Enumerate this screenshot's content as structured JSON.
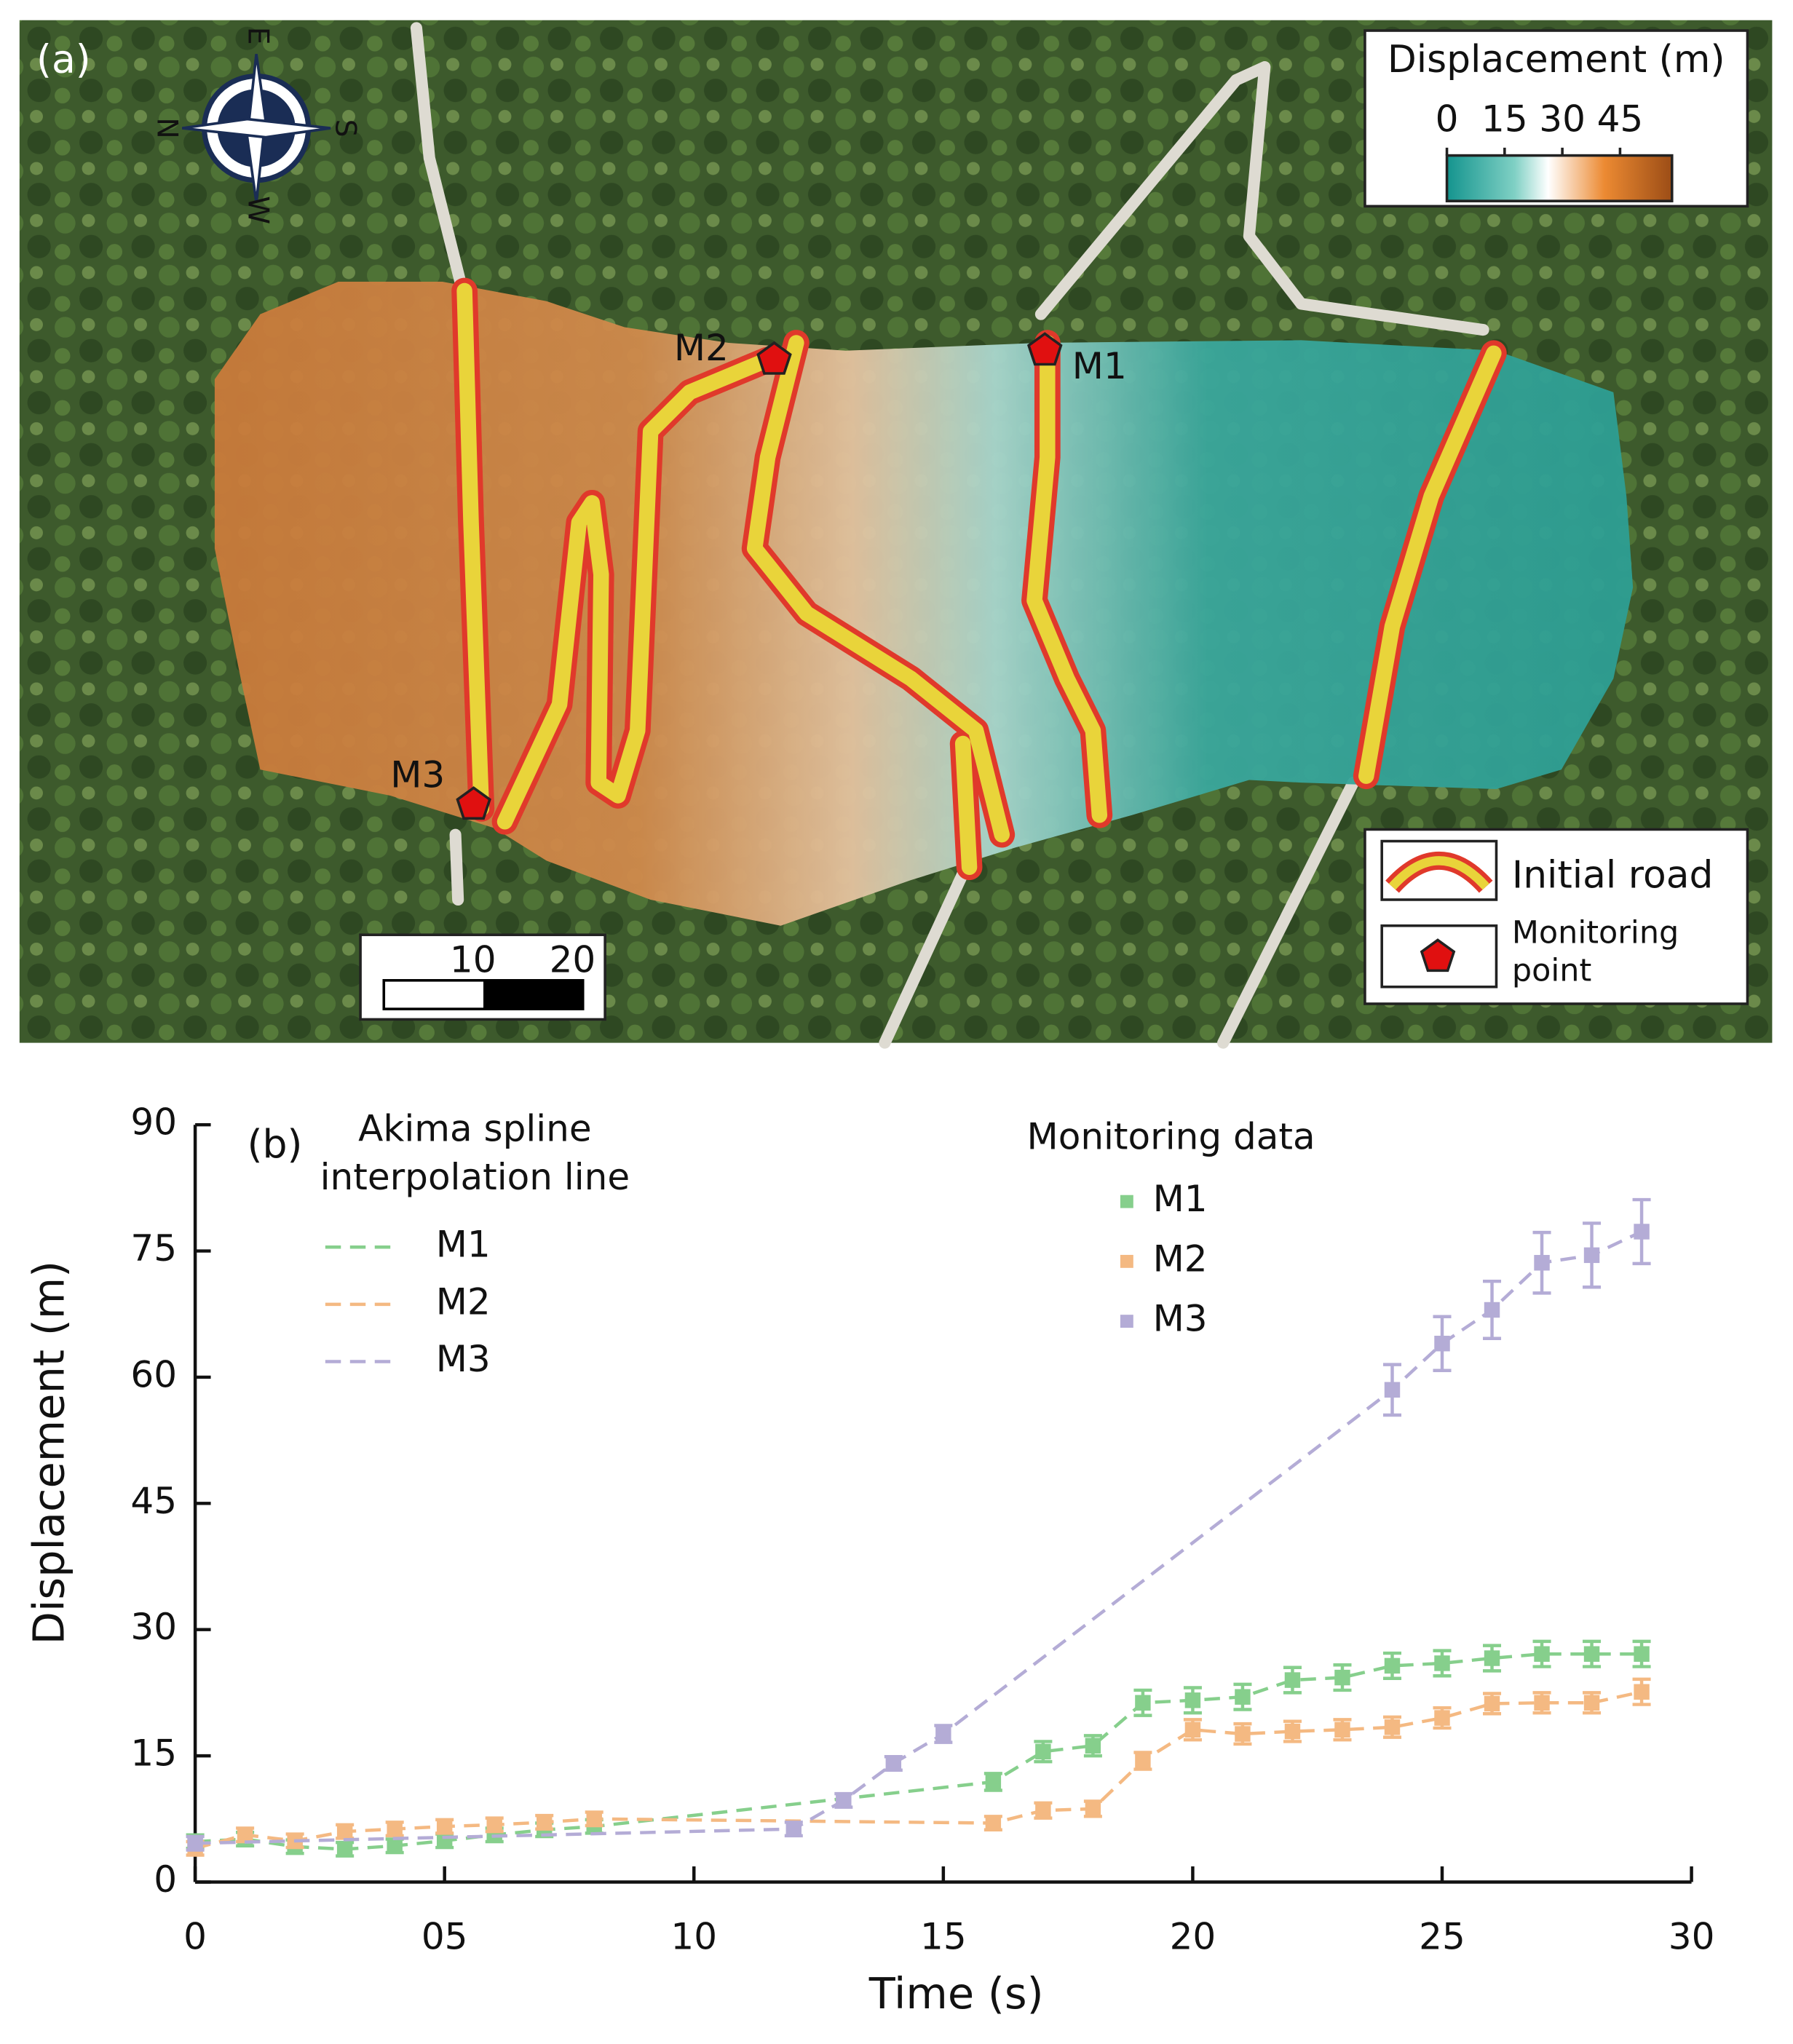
{
  "panel_a": {
    "label": "(a)",
    "compass": {
      "east": "E",
      "north": "N",
      "south": "S",
      "west": "W"
    },
    "colorbar": {
      "title": "Displacement (m)",
      "ticks": [
        0,
        15,
        30,
        45
      ],
      "lim": [
        0,
        58.5
      ]
    },
    "scale_bar": {
      "ticks": [
        10,
        20
      ],
      "lim": [
        0,
        20
      ]
    },
    "points": [
      "M1",
      "M2",
      "M3"
    ],
    "legend": {
      "road": "Initial road",
      "point": [
        "Monitoring",
        "point"
      ]
    }
  },
  "chart_data": {
    "type": "line",
    "panel_label": "(b)",
    "x_label": "Time (s)",
    "y_label": "Displacement (m)",
    "legend_line_title": [
      "Akima spline",
      "interpolation line"
    ],
    "legend_marker_title": "Monitoring data",
    "xlim": [
      0,
      30
    ],
    "ylim": [
      0,
      90
    ],
    "xticks": [
      0,
      {
        "value": 5,
        "label": "05"
      },
      10,
      15,
      20,
      25,
      30
    ],
    "yticks": [
      0,
      15,
      30,
      45,
      60,
      75,
      90
    ],
    "series": [
      {
        "name": "M1",
        "color": "#86cf8c",
        "x": [
          0,
          1,
          2,
          3,
          4,
          5,
          6,
          7,
          8,
          16,
          17,
          18,
          19,
          20,
          21,
          22,
          23,
          24,
          25,
          26,
          27,
          28,
          29
        ],
        "values": [
          4.8,
          5.1,
          4.2,
          3.9,
          4.3,
          4.9,
          5.6,
          6.2,
          6.6,
          11.9,
          15.5,
          16.2,
          21.3,
          21.6,
          22.0,
          24.0,
          24.3,
          25.7,
          26.0,
          26.6,
          27.1,
          27.1,
          27.1
        ],
        "errors": [
          0.8,
          0.8,
          0.8,
          0.8,
          0.8,
          0.8,
          0.8,
          0.8,
          0.8,
          1.0,
          1.2,
          1.2,
          1.5,
          1.5,
          1.5,
          1.5,
          1.5,
          1.5,
          1.5,
          1.5,
          1.5,
          1.5,
          1.5
        ]
      },
      {
        "name": "M2",
        "color": "#f4b982",
        "x": [
          0,
          1,
          2,
          3,
          4,
          5,
          6,
          7,
          8,
          16,
          17,
          18,
          19,
          20,
          21,
          22,
          23,
          24,
          25,
          26,
          27,
          28,
          29
        ],
        "values": [
          4.0,
          5.6,
          4.9,
          6.0,
          6.3,
          6.6,
          6.8,
          7.1,
          7.5,
          7.0,
          8.5,
          8.7,
          14.4,
          18.1,
          17.6,
          17.9,
          18.1,
          18.4,
          19.5,
          21.2,
          21.3,
          21.3,
          22.6
        ],
        "errors": [
          0.8,
          0.8,
          0.8,
          0.8,
          0.8,
          0.8,
          0.8,
          0.8,
          0.8,
          0.8,
          0.9,
          0.9,
          1.0,
          1.2,
          1.2,
          1.2,
          1.2,
          1.2,
          1.2,
          1.2,
          1.2,
          1.2,
          1.5
        ]
      },
      {
        "name": "M3",
        "color": "#b4acd6",
        "x": [
          0,
          12,
          13,
          14,
          15,
          24,
          25,
          26,
          27,
          28,
          29
        ],
        "values": [
          4.6,
          6.3,
          9.7,
          14.1,
          17.6,
          58.5,
          64.0,
          68.0,
          73.6,
          74.5,
          77.3
        ],
        "errors": [
          0.8,
          0.8,
          0.8,
          0.8,
          1.0,
          3.0,
          3.2,
          3.4,
          3.6,
          3.8,
          3.8
        ]
      }
    ]
  }
}
